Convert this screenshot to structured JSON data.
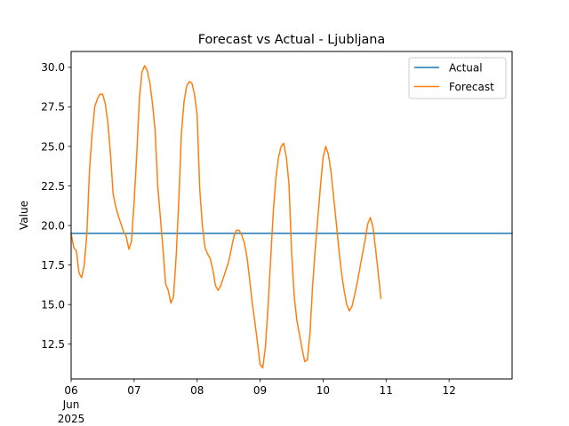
{
  "chart_data": {
    "type": "line",
    "title": "Forecast vs Actual - Ljubljana",
    "xlabel": "",
    "ylabel": "Value",
    "x_range": [
      "2025-06-06T00:00",
      "2025-06-13T00:00"
    ],
    "ylim": [
      10.3,
      31.0
    ],
    "x_ticks": [
      {
        "date": "2025-06-06",
        "label": "06",
        "sub1": "Jun",
        "sub2": "2025"
      },
      {
        "date": "2025-06-07",
        "label": "07"
      },
      {
        "date": "2025-06-08",
        "label": "08"
      },
      {
        "date": "2025-06-09",
        "label": "09"
      },
      {
        "date": "2025-06-10",
        "label": "10"
      },
      {
        "date": "2025-06-11",
        "label": "11"
      },
      {
        "date": "2025-06-12",
        "label": "12"
      }
    ],
    "y_ticks": [
      12.5,
      15.0,
      17.5,
      20.0,
      22.5,
      25.0,
      27.5,
      30.0
    ],
    "y_tick_labels": [
      "12.5",
      "15.0",
      "17.5",
      "20.0",
      "22.5",
      "25.0",
      "27.5",
      "30.0"
    ],
    "grid": false,
    "legend_position": "top-right",
    "series": [
      {
        "name": "Actual",
        "color": "#1f77b4",
        "points": [
          [
            "2025-06-06T00:00",
            19.5
          ],
          [
            "2025-06-13T00:00",
            19.5
          ]
        ]
      },
      {
        "name": "Forecast",
        "color": "#ff7f0e",
        "points": [
          [
            "2025-06-06T00:00",
            19.5
          ],
          [
            "2025-06-06T01:00",
            18.6
          ],
          [
            "2025-06-06T02:00",
            18.4
          ],
          [
            "2025-06-06T03:00",
            17.0
          ],
          [
            "2025-06-06T04:00",
            16.7
          ],
          [
            "2025-06-06T05:00",
            17.5
          ],
          [
            "2025-06-06T06:00",
            19.5
          ],
          [
            "2025-06-06T07:00",
            23.5
          ],
          [
            "2025-06-06T08:00",
            25.8
          ],
          [
            "2025-06-06T09:00",
            27.5
          ],
          [
            "2025-06-06T10:00",
            28.0
          ],
          [
            "2025-06-06T11:00",
            28.3
          ],
          [
            "2025-06-06T12:00",
            28.3
          ],
          [
            "2025-06-06T13:00",
            27.7
          ],
          [
            "2025-06-06T14:00",
            26.5
          ],
          [
            "2025-06-06T15:00",
            24.5
          ],
          [
            "2025-06-06T16:00",
            22.0
          ],
          [
            "2025-06-06T17:00",
            21.2
          ],
          [
            "2025-06-06T18:00",
            20.6
          ],
          [
            "2025-06-06T19:00",
            20.1
          ],
          [
            "2025-06-06T20:00",
            19.6
          ],
          [
            "2025-06-06T21:00",
            19.3
          ],
          [
            "2025-06-06T22:00",
            18.5
          ],
          [
            "2025-06-06T23:00",
            19.0
          ],
          [
            "2025-06-07T00:00",
            21.5
          ],
          [
            "2025-06-07T01:00",
            24.5
          ],
          [
            "2025-06-07T02:00",
            28.0
          ],
          [
            "2025-06-07T03:00",
            29.7
          ],
          [
            "2025-06-07T04:00",
            30.1
          ],
          [
            "2025-06-07T05:00",
            29.8
          ],
          [
            "2025-06-07T06:00",
            29.0
          ],
          [
            "2025-06-07T07:00",
            27.7
          ],
          [
            "2025-06-07T08:00",
            26.0
          ],
          [
            "2025-06-07T09:00",
            22.5
          ],
          [
            "2025-06-07T10:00",
            20.5
          ],
          [
            "2025-06-07T11:00",
            18.5
          ],
          [
            "2025-06-07T12:00",
            16.3
          ],
          [
            "2025-06-07T13:00",
            15.9
          ],
          [
            "2025-06-07T14:00",
            15.1
          ],
          [
            "2025-06-07T15:00",
            15.5
          ],
          [
            "2025-06-07T16:00",
            18.0
          ],
          [
            "2025-06-07T17:00",
            21.5
          ],
          [
            "2025-06-07T18:00",
            25.8
          ],
          [
            "2025-06-07T19:00",
            27.8
          ],
          [
            "2025-06-07T20:00",
            28.8
          ],
          [
            "2025-06-07T21:00",
            29.1
          ],
          [
            "2025-06-07T22:00",
            29.0
          ],
          [
            "2025-06-07T23:00",
            28.3
          ],
          [
            "2025-06-08T00:00",
            27.0
          ],
          [
            "2025-06-08T01:00",
            22.3
          ],
          [
            "2025-06-08T02:00",
            20.0
          ],
          [
            "2025-06-08T03:00",
            18.6
          ],
          [
            "2025-06-08T04:00",
            18.2
          ],
          [
            "2025-06-08T05:00",
            17.9
          ],
          [
            "2025-06-08T06:00",
            17.2
          ],
          [
            "2025-06-08T07:00",
            16.2
          ],
          [
            "2025-06-08T08:00",
            15.9
          ],
          [
            "2025-06-08T09:00",
            16.2
          ],
          [
            "2025-06-08T10:00",
            16.7
          ],
          [
            "2025-06-08T11:00",
            17.2
          ],
          [
            "2025-06-08T12:00",
            17.7
          ],
          [
            "2025-06-08T13:00",
            18.5
          ],
          [
            "2025-06-08T14:00",
            19.3
          ],
          [
            "2025-06-08T15:00",
            19.7
          ],
          [
            "2025-06-08T16:00",
            19.7
          ],
          [
            "2025-06-08T17:00",
            19.4
          ],
          [
            "2025-06-08T18:00",
            18.9
          ],
          [
            "2025-06-08T19:00",
            18.0
          ],
          [
            "2025-06-08T20:00",
            16.6
          ],
          [
            "2025-06-08T21:00",
            15.1
          ],
          [
            "2025-06-08T22:00",
            13.9
          ],
          [
            "2025-06-08T23:00",
            12.6
          ],
          [
            "2025-06-09T00:00",
            11.2
          ],
          [
            "2025-06-09T01:00",
            11.0
          ],
          [
            "2025-06-09T02:00",
            12.3
          ],
          [
            "2025-06-09T03:00",
            14.8
          ],
          [
            "2025-06-09T04:00",
            17.8
          ],
          [
            "2025-06-09T05:00",
            20.8
          ],
          [
            "2025-06-09T06:00",
            23.0
          ],
          [
            "2025-06-09T07:00",
            24.3
          ],
          [
            "2025-06-09T08:00",
            25.0
          ],
          [
            "2025-06-09T09:00",
            25.2
          ],
          [
            "2025-06-09T10:00",
            24.3
          ],
          [
            "2025-06-09T11:00",
            22.6
          ],
          [
            "2025-06-09T12:00",
            18.3
          ],
          [
            "2025-06-09T13:00",
            15.5
          ],
          [
            "2025-06-09T14:00",
            14.0
          ],
          [
            "2025-06-09T15:00",
            13.1
          ],
          [
            "2025-06-09T16:00",
            12.2
          ],
          [
            "2025-06-09T17:00",
            11.4
          ],
          [
            "2025-06-09T18:00",
            11.5
          ],
          [
            "2025-06-09T19:00",
            13.2
          ],
          [
            "2025-06-09T20:00",
            16.2
          ],
          [
            "2025-06-09T21:00",
            18.5
          ],
          [
            "2025-06-09T22:00",
            20.5
          ],
          [
            "2025-06-09T23:00",
            22.5
          ],
          [
            "2025-06-10T00:00",
            24.3
          ],
          [
            "2025-06-10T01:00",
            25.0
          ],
          [
            "2025-06-10T02:00",
            24.5
          ],
          [
            "2025-06-10T03:00",
            23.4
          ],
          [
            "2025-06-10T04:00",
            21.8
          ],
          [
            "2025-06-10T05:00",
            20.2
          ],
          [
            "2025-06-10T06:00",
            18.5
          ],
          [
            "2025-06-10T07:00",
            17.0
          ],
          [
            "2025-06-10T08:00",
            15.9
          ],
          [
            "2025-06-10T09:00",
            15.0
          ],
          [
            "2025-06-10T10:00",
            14.6
          ],
          [
            "2025-06-10T11:00",
            14.9
          ],
          [
            "2025-06-10T12:00",
            15.6
          ],
          [
            "2025-06-10T13:00",
            16.4
          ],
          [
            "2025-06-10T14:00",
            17.3
          ],
          [
            "2025-06-10T15:00",
            18.2
          ],
          [
            "2025-06-10T16:00",
            19.1
          ],
          [
            "2025-06-10T17:00",
            20.1
          ],
          [
            "2025-06-10T18:00",
            20.5
          ],
          [
            "2025-06-10T19:00",
            19.9
          ],
          [
            "2025-06-10T20:00",
            18.5
          ],
          [
            "2025-06-10T21:00",
            17.0
          ],
          [
            "2025-06-10T22:00",
            15.4
          ]
        ]
      }
    ]
  }
}
